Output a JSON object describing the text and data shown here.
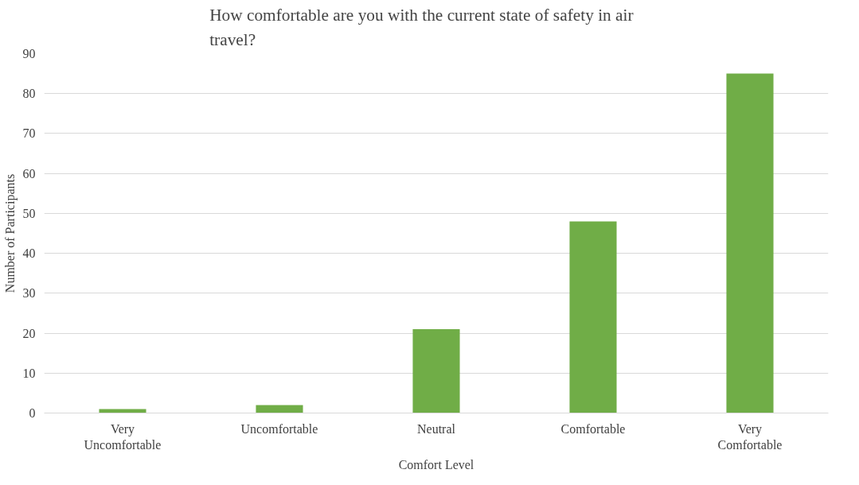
{
  "chart_data": {
    "type": "bar",
    "title": "How comfortable are you with the current state of safety in air travel?",
    "xlabel": "Comfort Level",
    "ylabel": "Number of Participants",
    "categories": [
      "Very Uncomfortable",
      "Uncomfortable",
      "Neutral",
      "Comfortable",
      "Very Comfortable"
    ],
    "values": [
      1,
      2,
      21,
      48,
      85
    ],
    "color": "#70ad47",
    "ylim": [
      0,
      90
    ],
    "yticks": [
      0,
      10,
      20,
      30,
      40,
      50,
      60,
      70,
      80,
      90
    ],
    "grid": "y"
  }
}
